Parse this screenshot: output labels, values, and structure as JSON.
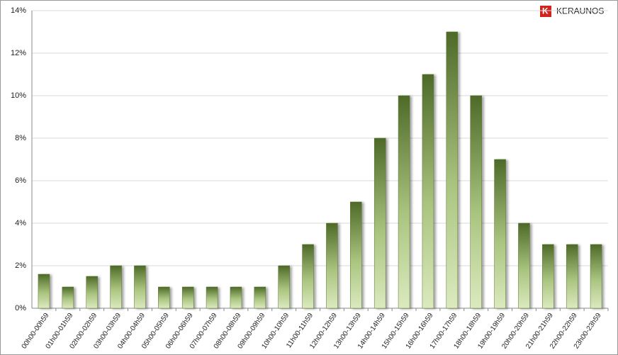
{
  "brand": "KERAUNOS",
  "chart_data": {
    "type": "bar",
    "categories": [
      "00h00-00h59",
      "01h00-01h59",
      "02h00-02h59",
      "03h00-03h59",
      "04h00-04h59",
      "05h00-05h59",
      "06h00-06h59",
      "07h00-07h59",
      "08h00-08h59",
      "09h00-09h59",
      "10h00-10h59",
      "11h00-11h59",
      "12h00-12h59",
      "13h00-13h59",
      "14h00-14h59",
      "15h00-15h59",
      "16h00-16h59",
      "17h00-17h59",
      "18h00-18h59",
      "19h00-19h59",
      "20h00-20h59",
      "21h00-21h59",
      "22h00-22h59",
      "23h00-23h59"
    ],
    "values": [
      1.6,
      1,
      1.5,
      2,
      2,
      1,
      1,
      1,
      1,
      1,
      2,
      3,
      4,
      5,
      8,
      10,
      11,
      13,
      10,
      7,
      4,
      3,
      3,
      3
    ],
    "color": "#56702e",
    "ylim": [
      0,
      14
    ],
    "yticks": [
      {
        "value": 0,
        "label": "0%"
      },
      {
        "value": 2,
        "label": "2%"
      },
      {
        "value": 4,
        "label": "4%"
      },
      {
        "value": 6,
        "label": "6%"
      },
      {
        "value": 8,
        "label": "8%"
      },
      {
        "value": 10,
        "label": "10%"
      },
      {
        "value": 12,
        "label": "12%"
      },
      {
        "value": 14,
        "label": "14%"
      }
    ],
    "grid": true
  }
}
